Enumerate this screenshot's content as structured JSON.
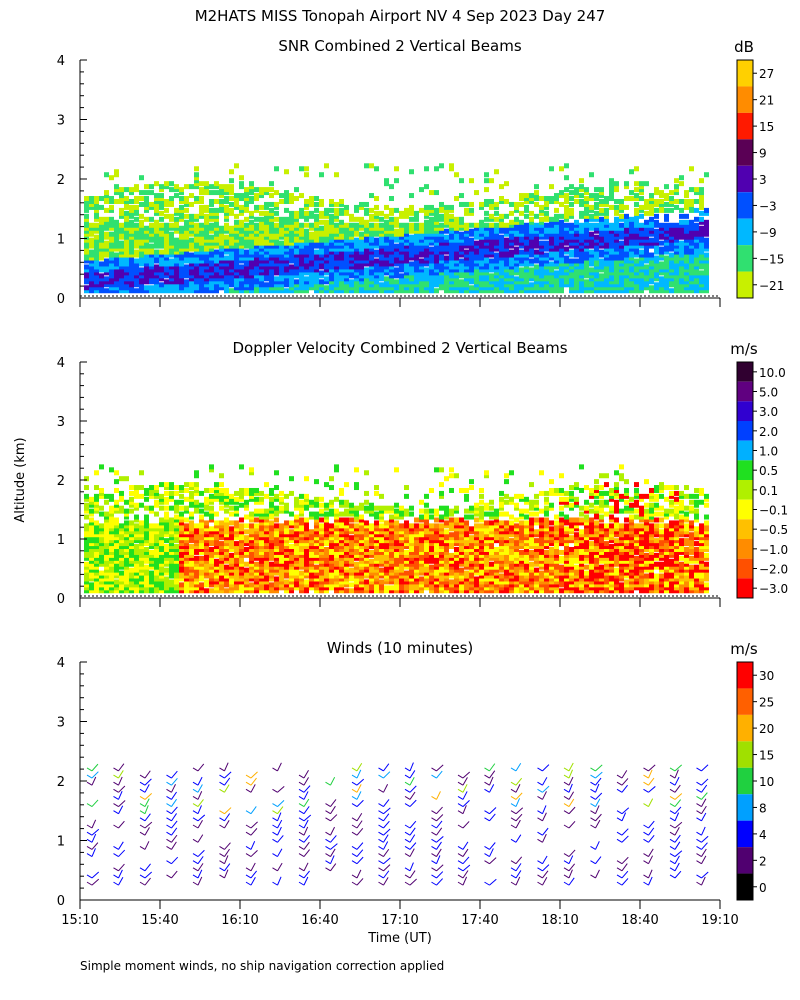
{
  "page": {
    "title": "M2HATS MISS Tonopah Airport NV   4 Sep 2023 Day 247",
    "ylabel_shared": "Altitude (km)",
    "xlabel": "Time (UT)",
    "footnote": "Simple moment winds, no ship navigation correction applied"
  },
  "chart_data": [
    {
      "id": "snr",
      "type": "heatmap",
      "title": "SNR Combined 2 Vertical Beams",
      "units": "dB",
      "x_range": [
        15.1667,
        19.1667
      ],
      "ylim": [
        0,
        4
      ],
      "yticks": [
        0,
        1,
        2,
        3,
        4
      ],
      "colorbar": {
        "labels": [
          "27",
          "21",
          "15",
          "9",
          "3",
          "−3",
          "−9",
          "−15",
          "−21"
        ],
        "colors": [
          "#ffd000",
          "#ff8c00",
          "#ff1a00",
          "#5a0055",
          "#5000b0",
          "#0050ff",
          "#00b8ff",
          "#30e070",
          "#c8f000"
        ]
      }
    },
    {
      "id": "doppler",
      "type": "heatmap",
      "title": "Doppler Velocity Combined 2 Vertical Beams",
      "units": "m/s",
      "x_range": [
        15.1667,
        19.1667
      ],
      "ylim": [
        0,
        4
      ],
      "yticks": [
        0,
        1,
        2,
        3,
        4
      ],
      "colorbar": {
        "labels": [
          "10.0",
          "5.0",
          "3.0",
          "2.0",
          "1.0",
          "0.5",
          "0.1",
          "−0.1",
          "−0.5",
          "−1.0",
          "−2.0",
          "−3.0"
        ],
        "colors": [
          "#300030",
          "#600080",
          "#3000d0",
          "#0040ff",
          "#00b0ff",
          "#20e020",
          "#b0f000",
          "#ffff00",
          "#ffc000",
          "#ff8c00",
          "#ff5000",
          "#ff0000"
        ]
      }
    },
    {
      "id": "winds",
      "type": "scatter",
      "title": "Winds (10 minutes)",
      "units": "m/s",
      "x_range": [
        15.1667,
        19.1667
      ],
      "ylim": [
        0,
        4
      ],
      "yticks": [
        0,
        1,
        2,
        3,
        4
      ],
      "xticks": [
        "15:10",
        "15:40",
        "16:10",
        "16:40",
        "17:10",
        "17:40",
        "18:10",
        "18:40",
        "19:10"
      ],
      "colorbar": {
        "labels": [
          "30",
          "25",
          "20",
          "15",
          "10",
          "8",
          "4",
          "2",
          "0"
        ],
        "colors": [
          "#ff0000",
          "#ff6000",
          "#ffb000",
          "#a0e000",
          "#20d040",
          "#00a0ff",
          "#0000ff",
          "#500070",
          "#000000"
        ]
      }
    }
  ]
}
